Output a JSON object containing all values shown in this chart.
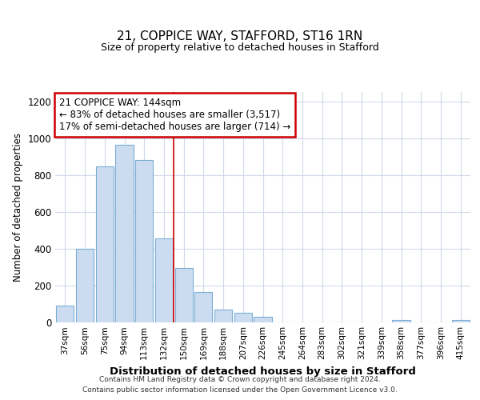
{
  "title1": "21, COPPICE WAY, STAFFORD, ST16 1RN",
  "title2": "Size of property relative to detached houses in Stafford",
  "xlabel": "Distribution of detached houses by size in Stafford",
  "ylabel": "Number of detached properties",
  "categories": [
    "37sqm",
    "56sqm",
    "75sqm",
    "94sqm",
    "113sqm",
    "132sqm",
    "150sqm",
    "169sqm",
    "188sqm",
    "207sqm",
    "226sqm",
    "245sqm",
    "264sqm",
    "283sqm",
    "302sqm",
    "321sqm",
    "339sqm",
    "358sqm",
    "377sqm",
    "396sqm",
    "415sqm"
  ],
  "values": [
    90,
    400,
    845,
    965,
    880,
    455,
    295,
    162,
    68,
    50,
    30,
    0,
    0,
    0,
    0,
    0,
    0,
    12,
    0,
    0,
    12
  ],
  "bar_color": "#ccdcf0",
  "bar_edge_color": "#7aadd4",
  "vline_x": 6.0,
  "vline_color": "#cc0000",
  "annotation_line1": "21 COPPICE WAY: 144sqm",
  "annotation_line2": "← 83% of detached houses are smaller (3,517)",
  "annotation_line3": "17% of semi-detached houses are larger (714) →",
  "annotation_box_color": "white",
  "annotation_box_edge": "#cc0000",
  "ylim": [
    0,
    1250
  ],
  "yticks": [
    0,
    200,
    400,
    600,
    800,
    1000,
    1200
  ],
  "footer1": "Contains HM Land Registry data © Crown copyright and database right 2024.",
  "footer2": "Contains public sector information licensed under the Open Government Licence v3.0.",
  "bg_color": "#ffffff",
  "plot_bg_color": "#ffffff",
  "grid_color": "#d0d8e8"
}
